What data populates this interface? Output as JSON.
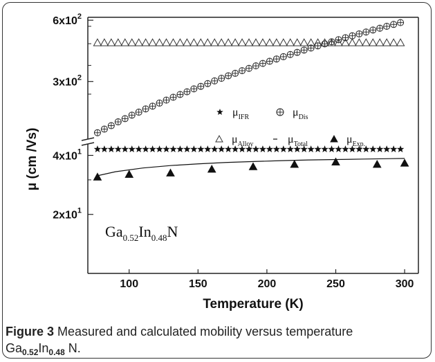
{
  "caption": {
    "label": "Figure 3",
    "text": "Measured and calculated mobility versus temperature",
    "formula_main1": "Ga",
    "formula_sub1": "0.52",
    "formula_main2": "In",
    "formula_sub2": "0.48",
    "formula_main3": " N."
  },
  "chart_data": {
    "type": "scatter",
    "xlabel": "Temperature (K)",
    "ylabel": "μ (cm /Vs)",
    "xlim": [
      70,
      310
    ],
    "x_ticks": [
      100,
      150,
      200,
      250,
      300
    ],
    "x_tick_labels": [
      "100",
      "150",
      "200",
      "250",
      "300"
    ],
    "y_axis_broken": true,
    "y_segments": [
      {
        "range": [
          10,
          45
        ],
        "scale": "log",
        "ticks": [
          {
            "value": 20,
            "mantissa": "2x10",
            "exp": "1"
          },
          {
            "value": 40,
            "mantissa": "4x10",
            "exp": "1"
          }
        ]
      },
      {
        "range": [
          160,
          620
        ],
        "scale": "log",
        "ticks": [
          {
            "value": 300,
            "mantissa": "3x10",
            "exp": "2"
          },
          {
            "value": 600,
            "mantissa": "6x10",
            "exp": "2"
          }
        ]
      }
    ],
    "grid": false,
    "legend_position": "center",
    "annotation": {
      "main1": "Ga",
      "sub1": "0.52",
      "main2": "In",
      "sub2": "0.48",
      "main3": "N"
    },
    "series": [
      {
        "name": "μ_IFR",
        "legend_main": "μ",
        "legend_sub": "IFR",
        "marker": "star",
        "color": "#111111",
        "x": [
          77,
          82,
          87,
          92,
          97,
          102,
          107,
          112,
          117,
          122,
          127,
          132,
          137,
          142,
          147,
          152,
          157,
          162,
          167,
          172,
          177,
          182,
          187,
          192,
          197,
          202,
          207,
          212,
          217,
          222,
          227,
          232,
          237,
          242,
          247,
          252,
          257,
          262,
          267,
          272,
          277,
          282,
          287,
          292,
          297
        ],
        "y": [
          43,
          43,
          43,
          43,
          43,
          43,
          43,
          43,
          43,
          43,
          43,
          43,
          43,
          43,
          43,
          43,
          43,
          43,
          43,
          43,
          43,
          43,
          43,
          43,
          43,
          43,
          43,
          43,
          43,
          43,
          43,
          43,
          43,
          43,
          43,
          43,
          43,
          43,
          43,
          43,
          43,
          43,
          43,
          43,
          43
        ]
      },
      {
        "name": "μ_Dis",
        "legend_main": "μ",
        "legend_sub": "Dis",
        "marker": "circle-plus",
        "color": "#222222",
        "x": [
          77,
          82,
          87,
          92,
          97,
          102,
          107,
          112,
          117,
          122,
          127,
          132,
          137,
          142,
          147,
          152,
          157,
          162,
          167,
          172,
          177,
          182,
          187,
          192,
          197,
          202,
          207,
          212,
          217,
          222,
          227,
          232,
          237,
          242,
          247,
          252,
          257,
          262,
          267,
          272,
          277,
          282,
          287,
          292,
          297
        ],
        "y": [
          168,
          175,
          182,
          190,
          197,
          205,
          212,
          220,
          227,
          235,
          243,
          251,
          259,
          267,
          276,
          284,
          293,
          302,
          311,
          320,
          329,
          339,
          348,
          358,
          368,
          377,
          387,
          397,
          407,
          417,
          428,
          438,
          449,
          459,
          470,
          481,
          492,
          503,
          514,
          525,
          537,
          548,
          560,
          572,
          584
        ]
      },
      {
        "name": "μ_Alloy",
        "legend_main": "μ",
        "legend_sub": "Alloy",
        "marker": "triangle-open",
        "color": "#333333",
        "x": [
          77,
          82,
          87,
          92,
          97,
          102,
          107,
          112,
          117,
          122,
          127,
          132,
          137,
          142,
          147,
          152,
          157,
          162,
          167,
          172,
          177,
          182,
          187,
          192,
          197,
          202,
          207,
          212,
          217,
          222,
          227,
          232,
          237,
          242,
          247,
          252,
          257,
          262,
          267,
          272,
          277,
          282,
          287,
          292,
          297
        ],
        "y": [
          465,
          465,
          465,
          465,
          465,
          465,
          465,
          465,
          465,
          465,
          465,
          465,
          465,
          465,
          465,
          465,
          465,
          465,
          465,
          465,
          465,
          465,
          465,
          465,
          465,
          465,
          465,
          465,
          465,
          465,
          465,
          465,
          465,
          465,
          465,
          465,
          465,
          465,
          465,
          465,
          465,
          465,
          465,
          465,
          465
        ]
      },
      {
        "name": "μ_Total",
        "legend_main": "μ",
        "legend_sub": "Total",
        "marker": "line",
        "color": "#111111",
        "x": [
          77,
          90,
          110,
          130,
          150,
          170,
          190,
          210,
          230,
          250,
          270,
          290,
          300
        ],
        "y": [
          31.5,
          33.0,
          34.5,
          35.5,
          36.2,
          36.8,
          37.2,
          37.6,
          37.9,
          38.1,
          38.3,
          38.5,
          38.6
        ]
      },
      {
        "name": "μ_Exp.",
        "legend_main": "μ",
        "legend_sub": "Exp.",
        "marker": "triangle-filled",
        "color": "#111111",
        "x": [
          77,
          100,
          130,
          160,
          190,
          220,
          250,
          280,
          300
        ],
        "y": [
          31,
          32,
          32.5,
          34,
          35,
          36,
          37,
          36,
          36.5
        ]
      }
    ]
  }
}
